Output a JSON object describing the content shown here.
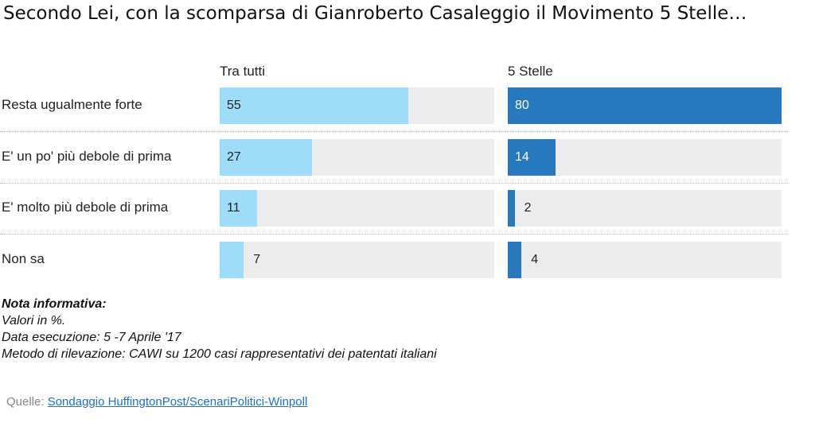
{
  "title": "Secondo Lei, con la scomparsa di Gianroberto Casaleggio il Movimento 5 Stelle…",
  "colors": {
    "light": "#9fdcf9",
    "dark": "#2878be",
    "track": "#ececec"
  },
  "chart_data": {
    "type": "bar",
    "categories": [
      "Resta ugualmente forte",
      "E' un po' più debole di prima",
      "E' molto più debole di prima",
      "Non sa"
    ],
    "series": [
      {
        "name": "Tra tutti",
        "values": [
          55,
          27,
          11,
          7
        ]
      },
      {
        "name": "5 Stelle",
        "values": [
          80,
          14,
          2,
          4
        ]
      }
    ],
    "xlim": [
      0,
      80
    ]
  },
  "notes": {
    "heading": "Nota informativa:",
    "lines": [
      "Valori in %.",
      "Data esecuzione: 5 -7  Aprile '17",
      "Metodo di rilevazione: CAWI su 1200 casi rappresentativi dei patentati italiani"
    ]
  },
  "source": {
    "label": "Quelle:",
    "link_text": "Sondaggio HuffingtonPost/ScenariPolitici-Winpoll"
  }
}
